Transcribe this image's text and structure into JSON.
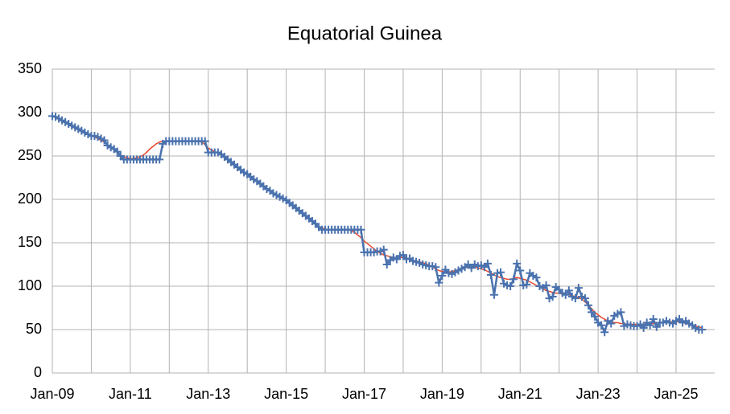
{
  "chart_data": {
    "type": "line",
    "title": "Equatorial Guinea",
    "categories": [
      "Jan-09",
      null,
      null,
      null,
      null,
      null,
      null,
      null,
      null,
      null,
      null,
      null,
      null,
      null,
      null,
      null,
      null,
      null,
      null,
      null,
      null,
      null,
      null,
      null,
      "Jan-11",
      null,
      null,
      null,
      null,
      null,
      null,
      null,
      null,
      null,
      null,
      null,
      null,
      null,
      null,
      null,
      null,
      null,
      null,
      null,
      null,
      null,
      null,
      null,
      "Jan-13",
      null,
      null,
      null,
      null,
      null,
      null,
      null,
      null,
      null,
      null,
      null,
      null,
      null,
      null,
      null,
      null,
      null,
      null,
      null,
      null,
      null,
      null,
      null,
      "Jan-15",
      null,
      null,
      null,
      null,
      null,
      null,
      null,
      null,
      null,
      null,
      null,
      null,
      null,
      null,
      null,
      null,
      null,
      null,
      null,
      null,
      null,
      null,
      null,
      "Jan-17",
      null,
      null,
      null,
      null,
      null,
      null,
      null,
      null,
      null,
      null,
      null,
      null,
      null,
      null,
      null,
      null,
      null,
      null,
      null,
      null,
      null,
      null,
      null,
      "Jan-19",
      null,
      null,
      null,
      null,
      null,
      null,
      null,
      null,
      null,
      null,
      null,
      null,
      null,
      null,
      null,
      null,
      null,
      null,
      null,
      null,
      null,
      null,
      null,
      "Jan-21",
      null,
      null,
      null,
      null,
      null,
      null,
      null,
      null,
      null,
      null,
      null,
      null,
      null,
      null,
      null,
      null,
      null,
      null,
      null,
      null,
      null,
      null,
      null,
      "Jan-23",
      null,
      null,
      null,
      null,
      null,
      null,
      null,
      null,
      null,
      null,
      null,
      null,
      null,
      null,
      null,
      null,
      null,
      null,
      null,
      null,
      null,
      null,
      null,
      "Jan-25",
      null,
      null,
      null,
      null,
      null,
      null,
      null,
      null
    ],
    "series": [
      {
        "color": "#4a72ae",
        "marker": "plus",
        "values": [
          296,
          295,
          293,
          291,
          289,
          287,
          285,
          283,
          281,
          279,
          277,
          275,
          273,
          273,
          272,
          270,
          268,
          262,
          260,
          258,
          255,
          250,
          246,
          246,
          246,
          246,
          246,
          246,
          246,
          246,
          246,
          246,
          246,
          246,
          264,
          267,
          267,
          267,
          267,
          267,
          267,
          267,
          267,
          267,
          267,
          267,
          267,
          267,
          254,
          254,
          254,
          254,
          252,
          249,
          246,
          243,
          240,
          237,
          234,
          231,
          229,
          226,
          223,
          221,
          218,
          215,
          212,
          210,
          207,
          205,
          203,
          201,
          199,
          196,
          193,
          190,
          187,
          184,
          181,
          178,
          175,
          172,
          168,
          165,
          165,
          165,
          165,
          165,
          165,
          165,
          165,
          165,
          165,
          165,
          165,
          165,
          139,
          139,
          139,
          139,
          140,
          140,
          142,
          125,
          130,
          133,
          131,
          135,
          136,
          131,
          132,
          129,
          128,
          127,
          125,
          124,
          123,
          123,
          122,
          104,
          112,
          119,
          115,
          114,
          116,
          118,
          120,
          122,
          125,
          121,
          125,
          123,
          124,
          122,
          126,
          113,
          90,
          115,
          116,
          103,
          101,
          100,
          108,
          126,
          118,
          101,
          102,
          115,
          112,
          110,
          100,
          98,
          101,
          86,
          88,
          99,
          96,
          92,
          90,
          95,
          88,
          86,
          98,
          88,
          86,
          78,
          70,
          65,
          58,
          55,
          47,
          60,
          57,
          66,
          68,
          70,
          54,
          56,
          55,
          54,
          54,
          56,
          52,
          58,
          55,
          62,
          53,
          58,
          58,
          60,
          58,
          57,
          60,
          62,
          58,
          60,
          57,
          55,
          52,
          50,
          50
        ]
      },
      {
        "color": "#e8482c",
        "values": [
          296,
          294,
          292,
          290,
          288,
          286,
          284,
          282,
          280,
          278,
          276,
          275,
          273,
          272,
          270,
          268,
          266,
          263,
          260,
          257,
          254,
          251,
          249,
          248,
          247,
          247,
          248,
          249,
          251,
          254,
          258,
          261,
          264,
          266,
          267,
          267,
          267,
          267,
          267,
          267,
          267,
          267,
          267,
          267,
          267,
          267,
          266,
          263,
          259,
          257,
          255,
          253,
          251,
          249,
          246,
          243,
          240,
          237,
          234,
          231,
          228,
          226,
          223,
          220,
          218,
          215,
          212,
          210,
          207,
          205,
          203,
          201,
          199,
          196,
          193,
          190,
          187,
          184,
          181,
          178,
          175,
          172,
          169,
          167,
          166,
          165,
          165,
          165,
          165,
          165,
          165,
          165,
          164,
          162,
          159,
          156,
          152,
          149,
          146,
          143,
          140,
          138,
          136,
          135,
          134,
          133,
          133,
          133,
          133,
          132,
          131,
          130,
          129,
          128,
          127,
          126,
          124,
          122,
          120,
          118,
          117,
          116,
          116,
          117,
          118,
          119,
          120,
          121,
          122,
          122,
          122,
          121,
          120,
          119,
          117,
          115,
          113,
          111,
          110,
          109,
          108,
          108,
          109,
          110,
          109,
          108,
          107,
          105,
          103,
          101,
          99,
          97,
          95,
          94,
          93,
          92,
          92,
          91,
          90,
          90,
          89,
          88,
          87,
          85,
          82,
          78,
          74,
          70,
          67,
          64,
          62,
          60,
          59,
          58,
          58,
          57,
          57,
          56,
          56,
          56,
          56,
          56,
          56,
          57,
          57,
          57,
          58,
          58,
          58,
          59,
          59,
          59,
          59,
          59,
          58,
          57,
          56,
          55,
          54,
          53,
          52
        ]
      }
    ],
    "ylim": [
      0,
      350
    ],
    "yticks": [
      0,
      50,
      100,
      150,
      200,
      250,
      300,
      350
    ],
    "grid": true
  }
}
